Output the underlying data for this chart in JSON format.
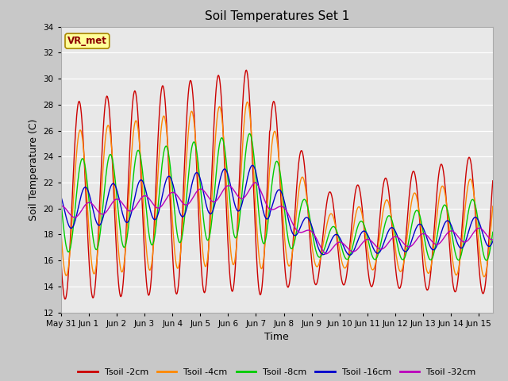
{
  "title": "Soil Temperatures Set 1",
  "xlabel": "Time",
  "ylabel": "Soil Temperature (C)",
  "ylim": [
    12,
    34
  ],
  "yticks": [
    12,
    14,
    16,
    18,
    20,
    22,
    24,
    26,
    28,
    30,
    32,
    34
  ],
  "fig_bg_color": "#c8c8c8",
  "plot_bg_color": "#e8e8e8",
  "series_colors": [
    "#cc0000",
    "#ff8800",
    "#00cc00",
    "#0000cc",
    "#bb00bb"
  ],
  "series_labels": [
    "Tsoil -2cm",
    "Tsoil -4cm",
    "Tsoil -8cm",
    "Tsoil -16cm",
    "Tsoil -32cm"
  ],
  "annotation_text": "VR_met",
  "annotation_color": "#8B0000",
  "annotation_bg": "#ffff99",
  "xlim": [
    0,
    15.5
  ],
  "xtick_labels": [
    "May 31",
    "Jun 1",
    "Jun 2",
    "Jun 3",
    "Jun 4",
    "Jun 5",
    "Jun 6",
    "Jun 7",
    "Jun 8",
    "Jun 9",
    "Jun 10",
    "Jun 11",
    "Jun 12",
    "Jun 13",
    "Jun 14",
    "Jun 15"
  ],
  "xtick_positions": [
    0,
    1,
    2,
    3,
    4,
    5,
    6,
    7,
    8,
    9,
    10,
    11,
    12,
    13,
    14,
    15
  ]
}
